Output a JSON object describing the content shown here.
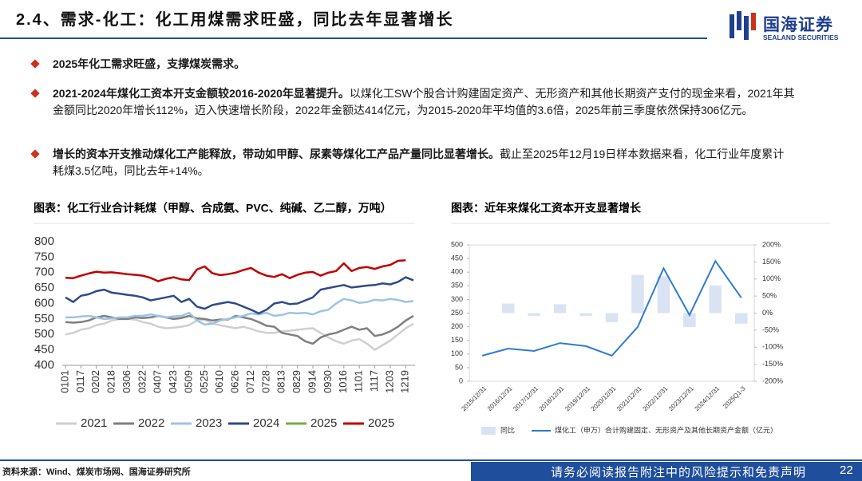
{
  "header": {
    "title": "2.4、需求-化工：化工用煤需求旺盛，同比去年显著增长",
    "logo": "国海证券",
    "logo_en": "SEALAND SECURITIES"
  },
  "bullets": [
    {
      "bold": "2025年化工需求旺盛，支撑煤炭需求。"
    },
    {
      "bold": "2021-2024年煤化工资本开支金额较2016-2020年显著提升。",
      "text": "以煤化工SW个股合计购建固定资产、无形资产和其他长期资产支付的现金来看，2021年其金额同比2020年增长112%，迈入快速增长阶段，2022年金额达414亿元，为2015-2020年平均值的3.6倍，2025年前三季度依然保持306亿元。"
    },
    {
      "bold": "增长的资本开支推动煤化工产能释放，带动如甲醇、尿素等煤化工产品产量同比显著增长。",
      "text": "截止至2025年12月19日样本数据来看，化工行业年度累计耗煤3.5亿吨，同比去年+14%。"
    }
  ],
  "chart_data": [
    {
      "type": "line",
      "title": "图表：化工行业合计耗煤（甲醇、合成氨、PVC、纯碱、乙二醇，万吨）",
      "categories": [
        "0101",
        null,
        "0117",
        null,
        "0202",
        null,
        "0218",
        null,
        "0306",
        null,
        "0322",
        null,
        "0407",
        null,
        "0423",
        null,
        "0509",
        null,
        "0525",
        null,
        "0610",
        null,
        "0626",
        null,
        "0712",
        null,
        "0728",
        null,
        "0813",
        null,
        "0829",
        null,
        "0914",
        null,
        "0930",
        null,
        "1016",
        null,
        "1101",
        null,
        "1117",
        null,
        "1203",
        null,
        "1219",
        null
      ],
      "ylim": [
        400,
        800
      ],
      "yticks": [
        400,
        450,
        500,
        550,
        600,
        650,
        700,
        750,
        800
      ],
      "grid": false,
      "series": [
        {
          "name": "2021",
          "color": "#cfcfcf",
          "values": [
            500,
            505,
            515,
            520,
            530,
            535,
            545,
            550,
            550,
            548,
            540,
            535,
            525,
            520,
            522,
            525,
            530,
            545,
            548,
            535,
            530,
            525,
            520,
            525,
            518,
            510,
            505,
            505,
            510,
            512,
            515,
            518,
            520,
            505,
            490,
            478,
            470,
            480,
            485,
            470,
            450,
            465,
            480,
            500,
            520,
            535
          ]
        },
        {
          "name": "2022",
          "color": "#7f7f7f",
          "values": [
            540,
            538,
            540,
            545,
            555,
            560,
            555,
            550,
            550,
            555,
            553,
            555,
            560,
            555,
            550,
            553,
            560,
            552,
            550,
            545,
            548,
            548,
            560,
            555,
            550,
            540,
            528,
            525,
            505,
            500,
            495,
            478,
            470,
            490,
            500,
            505,
            515,
            525,
            515,
            520,
            495,
            500,
            510,
            525,
            545,
            560
          ]
        },
        {
          "name": "2023",
          "color": "#9dc3e6",
          "values": [
            555,
            555,
            558,
            560,
            555,
            550,
            552,
            555,
            555,
            560,
            560,
            565,
            560,
            555,
            558,
            560,
            570,
            545,
            532,
            535,
            545,
            550,
            555,
            560,
            568,
            565,
            570,
            560,
            563,
            570,
            568,
            570,
            565,
            575,
            580,
            600,
            615,
            610,
            602,
            605,
            612,
            610,
            615,
            612,
            605,
            608
          ]
        },
        {
          "name": "2024",
          "color": "#2f4a8a",
          "values": [
            620,
            605,
            625,
            630,
            640,
            645,
            635,
            632,
            628,
            625,
            620,
            610,
            615,
            620,
            625,
            605,
            615,
            590,
            583,
            595,
            600,
            605,
            600,
            590,
            580,
            568,
            580,
            600,
            605,
            598,
            600,
            610,
            620,
            645,
            650,
            655,
            660,
            652,
            655,
            658,
            660,
            665,
            662,
            670,
            685,
            675
          ]
        },
        {
          "name": "2025",
          "color": "#70ad47",
          "values": [
            null,
            null,
            null,
            null,
            null,
            null,
            null,
            null,
            null,
            null,
            null,
            null,
            null,
            null,
            null,
            null,
            null,
            null,
            null,
            null,
            null,
            null,
            null,
            null,
            null,
            null,
            null,
            null,
            null,
            null,
            null,
            null,
            null,
            null,
            null,
            null,
            null,
            null,
            null,
            null,
            null,
            null,
            null,
            null,
            null,
            null
          ]
        },
        {
          "name": "2025",
          "color": "#c00000",
          "values": [
            683,
            682,
            690,
            697,
            703,
            700,
            701,
            698,
            695,
            693,
            690,
            683,
            672,
            680,
            685,
            678,
            676,
            710,
            720,
            698,
            692,
            695,
            700,
            708,
            715,
            700,
            690,
            686,
            695,
            682,
            693,
            700,
            702,
            690,
            700,
            705,
            730,
            705,
            715,
            718,
            712,
            720,
            725,
            738,
            740,
            null
          ]
        }
      ]
    },
    {
      "type": "combo",
      "title": "图表：近年来煤化工资本开支显著增长",
      "categories": [
        "2015/12/31",
        "2016/12/31",
        "2017/12/31",
        "2018/12/31",
        "2019/12/31",
        "2020/12/31",
        "2021/12/31",
        "2022/12/31",
        "2023/12/31",
        "2024/12/31",
        "2025Q1-3"
      ],
      "ylim": [
        0,
        500
      ],
      "yticks": [
        0,
        50,
        100,
        150,
        200,
        250,
        300,
        350,
        400,
        450,
        500
      ],
      "y2lim": [
        -200,
        200
      ],
      "y2ticks": [
        {
          "value": -200,
          "label": "-200%"
        },
        {
          "value": -150,
          "label": "-150%"
        },
        {
          "value": -100,
          "label": "-100%"
        },
        {
          "value": -50,
          "label": "-50%"
        },
        {
          "value": 0,
          "label": "0%"
        },
        {
          "value": 50,
          "label": "50%"
        },
        {
          "value": 100,
          "label": "100%"
        },
        {
          "value": 150,
          "label": "150%"
        },
        {
          "value": 200,
          "label": "200%"
        }
      ],
      "series": [
        {
          "name": "同比",
          "kind": "bar",
          "axis": "y2",
          "color": "#dae3f3",
          "values": [
            null,
            28,
            -8,
            26,
            -8,
            -27,
            112,
            108,
            -41,
            81,
            -31
          ]
        },
        {
          "name": "煤化工（申万）合计购建固定、无形资产及其他长期资产金额（亿元）",
          "kind": "line",
          "color": "#2e7bd6",
          "values": [
            94,
            120,
            111,
            140,
            129,
            94,
            199,
            414,
            243,
            441,
            306
          ]
        }
      ]
    }
  ],
  "footer": {
    "source": "资料来源：Wind、煤炭市场网、国海证券研究所",
    "disclaimer": "请务必阅读报告附注中的风险提示和免责声明",
    "page": "22"
  }
}
